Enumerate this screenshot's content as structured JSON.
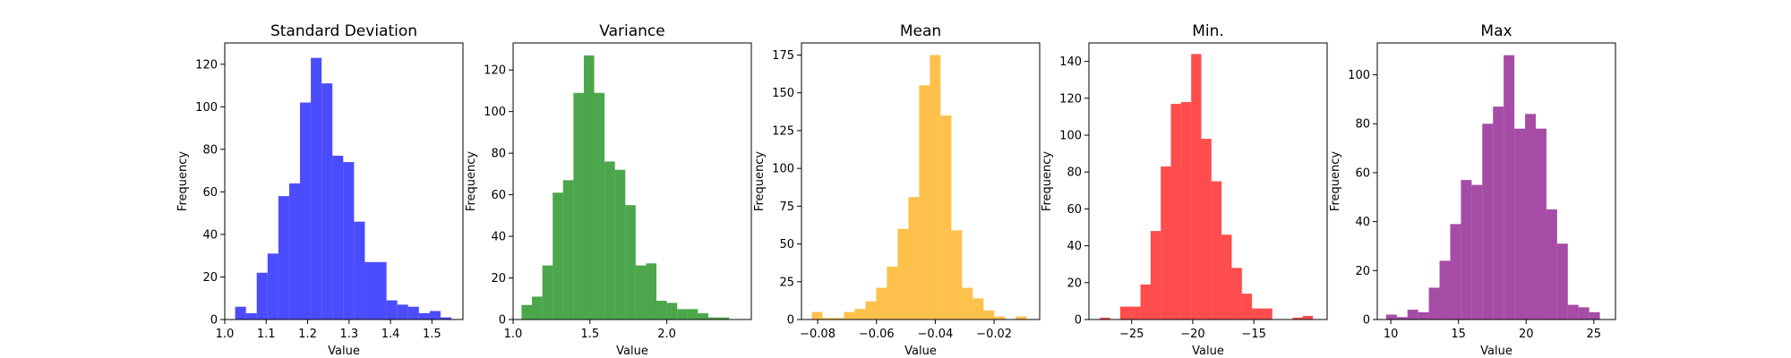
{
  "chart_data": [
    {
      "type": "bar",
      "title": "Standard Deviation",
      "xlabel": "Value",
      "ylabel": "Frequency",
      "color": "#0000ff",
      "xlim": [
        1.0,
        1.575
      ],
      "ylim": [
        0,
        130
      ],
      "xticks": [
        1.0,
        1.1,
        1.2,
        1.3,
        1.4,
        1.5
      ],
      "xtick_labels": [
        "1.0",
        "1.1",
        "1.2",
        "1.3",
        "1.4",
        "1.5"
      ],
      "yticks": [
        0,
        20,
        40,
        60,
        80,
        100,
        120
      ],
      "ytick_labels": [
        "0",
        "20",
        "40",
        "60",
        "80",
        "100",
        "120"
      ],
      "bin_edges": [
        1.025,
        1.0511,
        1.0772,
        1.1033,
        1.1294,
        1.1555,
        1.1816,
        1.2077,
        1.2338,
        1.2599,
        1.286,
        1.3121,
        1.3382,
        1.3643,
        1.3904,
        1.4165,
        1.4426,
        1.4687,
        1.4948,
        1.5209,
        1.547
      ],
      "values": [
        6,
        3,
        22,
        31,
        58,
        64,
        102,
        123,
        111,
        77,
        74,
        46,
        27,
        27,
        9,
        7,
        6,
        3,
        4,
        1
      ]
    },
    {
      "type": "bar",
      "title": "Variance",
      "xlabel": "Value",
      "ylabel": "Frequency",
      "color": "#008000",
      "xlim": [
        1.0,
        2.55
      ],
      "ylim": [
        0,
        133
      ],
      "xticks": [
        1.0,
        1.5,
        2.0
      ],
      "xtick_labels": [
        "1.0",
        "1.5",
        "2.0"
      ],
      "yticks": [
        0,
        20,
        40,
        60,
        80,
        100,
        120
      ],
      "ytick_labels": [
        "0",
        "20",
        "40",
        "60",
        "80",
        "100",
        "120"
      ],
      "bin_edges": [
        1.055,
        1.1225,
        1.19,
        1.2575,
        1.325,
        1.3925,
        1.46,
        1.5275,
        1.595,
        1.6625,
        1.73,
        1.7975,
        1.865,
        1.9325,
        2.0,
        2.0675,
        2.135,
        2.2025,
        2.27,
        2.3375,
        2.405
      ],
      "values": [
        7,
        11,
        26,
        61,
        67,
        109,
        127,
        109,
        76,
        72,
        55,
        26,
        27,
        9,
        8,
        5,
        5,
        3,
        1,
        1
      ]
    },
    {
      "type": "bar",
      "title": "Mean",
      "xlabel": "Value",
      "ylabel": "Frequency",
      "color": "#ffa500",
      "xlim": [
        -0.0855,
        -0.0045
      ],
      "ylim": [
        0,
        183
      ],
      "xticks": [
        -0.08,
        -0.06,
        -0.04,
        -0.02
      ],
      "xtick_labels": [
        "−0.08",
        "−0.06",
        "−0.04",
        "−0.02"
      ],
      "yticks": [
        0,
        25,
        50,
        75,
        100,
        125,
        150,
        175
      ],
      "ytick_labels": [
        "0",
        "25",
        "50",
        "75",
        "100",
        "125",
        "150",
        "175"
      ],
      "bin_edges": [
        -0.082,
        -0.07835,
        -0.0747,
        -0.07105,
        -0.0674,
        -0.06375,
        -0.0601,
        -0.05645,
        -0.0528,
        -0.04915,
        -0.0455,
        -0.04185,
        -0.0382,
        -0.03455,
        -0.0309,
        -0.02725,
        -0.0236,
        -0.01995,
        -0.0163,
        -0.01265,
        -0.009
      ],
      "values": [
        5,
        1,
        1,
        5,
        7,
        12,
        21,
        35,
        60,
        81,
        155,
        175,
        135,
        59,
        21,
        14,
        6,
        2,
        0,
        2
      ]
    },
    {
      "type": "bar",
      "title": "Min.",
      "xlabel": "Value",
      "ylabel": "Frequency",
      "color": "#ff0000",
      "xlim": [
        -28.5,
        -9.0
      ],
      "ylim": [
        0,
        150
      ],
      "xticks": [
        -25,
        -20,
        -15
      ],
      "xtick_labels": [
        "−25",
        "−20",
        "−15"
      ],
      "yticks": [
        0,
        20,
        40,
        60,
        80,
        100,
        120,
        140
      ],
      "ytick_labels": [
        "0",
        "20",
        "40",
        "60",
        "80",
        "100",
        "120",
        "140"
      ],
      "bin_edges": [
        -27.6,
        -26.77,
        -25.94,
        -25.11,
        -24.28,
        -23.45,
        -22.62,
        -21.79,
        -20.96,
        -20.13,
        -19.3,
        -18.47,
        -17.64,
        -16.81,
        -15.98,
        -15.15,
        -14.32,
        -13.49,
        -12.66,
        -11.83,
        -11.0,
        -10.17
      ],
      "values": [
        1,
        0,
        7,
        7,
        19,
        48,
        83,
        117,
        118,
        144,
        98,
        75,
        46,
        28,
        14,
        6,
        6,
        0,
        0,
        1,
        2
      ]
    },
    {
      "type": "bar",
      "title": "Max",
      "xlabel": "Value",
      "ylabel": "Frequency",
      "color": "#800080",
      "xlim": [
        9.0,
        26.6
      ],
      "ylim": [
        0,
        113
      ],
      "xticks": [
        10,
        15,
        20,
        25
      ],
      "xtick_labels": [
        "10",
        "15",
        "20",
        "25"
      ],
      "yticks": [
        0,
        20,
        40,
        60,
        80,
        100
      ],
      "ytick_labels": [
        "0",
        "20",
        "40",
        "60",
        "80",
        "100"
      ],
      "bin_edges": [
        9.65,
        10.44,
        11.23,
        12.02,
        12.81,
        13.6,
        14.39,
        15.18,
        15.97,
        16.76,
        17.55,
        18.34,
        19.13,
        19.92,
        20.71,
        21.5,
        22.29,
        23.08,
        23.87,
        24.66,
        25.45
      ],
      "values": [
        2,
        1,
        4,
        3,
        13,
        24,
        39,
        57,
        55,
        80,
        87,
        108,
        78,
        84,
        78,
        45,
        31,
        6,
        5,
        3
      ]
    }
  ]
}
